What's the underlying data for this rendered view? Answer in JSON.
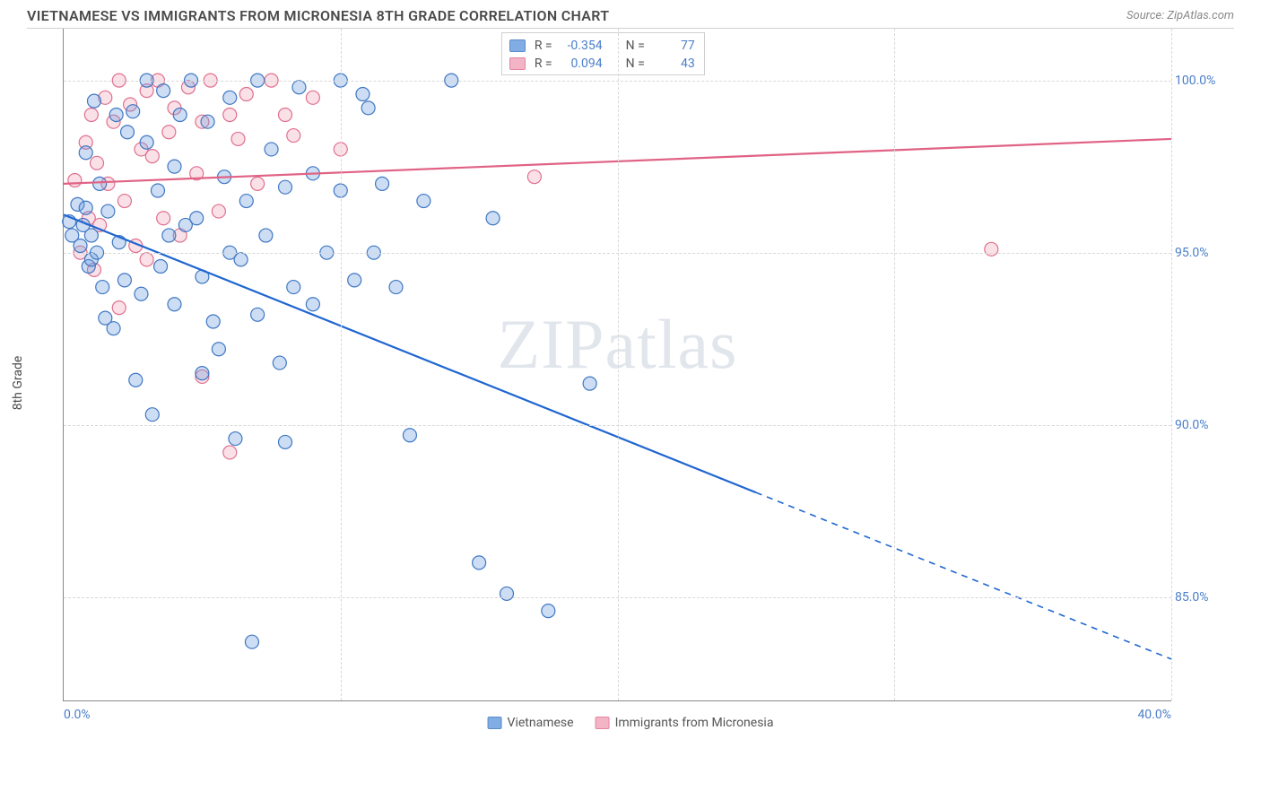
{
  "header": {
    "title": "VIETNAMESE VS IMMIGRANTS FROM MICRONESIA 8TH GRADE CORRELATION CHART",
    "source": "Source: ZipAtlas.com"
  },
  "watermark": "ZIPatlas",
  "chart": {
    "type": "scatter",
    "xlim": [
      0,
      40
    ],
    "ylim": [
      82,
      101.5
    ],
    "x_ticks": [
      0,
      10,
      20,
      30,
      40
    ],
    "x_tick_labels": [
      "0.0%",
      "",
      "",
      "",
      "40.0%"
    ],
    "y_ticks": [
      85,
      90,
      95,
      100
    ],
    "y_tick_labels": [
      "85.0%",
      "90.0%",
      "95.0%",
      "100.0%"
    ],
    "ylabel": "8th Grade",
    "background_color": "#ffffff",
    "grid_color": "#d8d8d8",
    "axis_color": "#888888",
    "marker_radius": 7.5,
    "marker_fill_opacity": 0.35,
    "marker_stroke_width": 1.2,
    "line_width": 2.2,
    "series": [
      {
        "name": "Vietnamese",
        "color": "#6d9fe0",
        "stroke": "#3f77c3",
        "line_color": "#1f66d0",
        "r": -0.354,
        "n": 77,
        "trend": {
          "x1": 0,
          "y1": 96.1,
          "x2": 40,
          "y2": 83.2,
          "solid_until_x": 25
        },
        "points": [
          [
            0.2,
            95.9
          ],
          [
            0.3,
            95.5
          ],
          [
            0.5,
            96.4
          ],
          [
            0.6,
            95.2
          ],
          [
            0.7,
            95.8
          ],
          [
            0.8,
            97.9
          ],
          [
            0.8,
            96.3
          ],
          [
            0.9,
            94.6
          ],
          [
            1.0,
            95.5
          ],
          [
            1.0,
            94.8
          ],
          [
            1.1,
            99.4
          ],
          [
            1.2,
            95.0
          ],
          [
            1.3,
            97.0
          ],
          [
            1.4,
            94.0
          ],
          [
            1.5,
            93.1
          ],
          [
            1.6,
            96.2
          ],
          [
            1.8,
            92.8
          ],
          [
            1.9,
            99.0
          ],
          [
            2.0,
            95.3
          ],
          [
            2.2,
            94.2
          ],
          [
            2.3,
            98.5
          ],
          [
            2.5,
            99.1
          ],
          [
            2.6,
            91.3
          ],
          [
            2.8,
            93.8
          ],
          [
            3.0,
            100.0
          ],
          [
            3.0,
            98.2
          ],
          [
            3.2,
            90.3
          ],
          [
            3.4,
            96.8
          ],
          [
            3.5,
            94.6
          ],
          [
            3.6,
            99.7
          ],
          [
            3.8,
            95.5
          ],
          [
            4.0,
            93.5
          ],
          [
            4.0,
            97.5
          ],
          [
            4.2,
            99.0
          ],
          [
            4.4,
            95.8
          ],
          [
            4.6,
            100.0
          ],
          [
            4.8,
            96.0
          ],
          [
            5.0,
            91.5
          ],
          [
            5.0,
            94.3
          ],
          [
            5.2,
            98.8
          ],
          [
            5.4,
            93.0
          ],
          [
            5.6,
            92.2
          ],
          [
            5.8,
            97.2
          ],
          [
            6.0,
            99.5
          ],
          [
            6.0,
            95.0
          ],
          [
            6.2,
            89.6
          ],
          [
            6.4,
            94.8
          ],
          [
            6.6,
            96.5
          ],
          [
            6.8,
            83.7
          ],
          [
            7.0,
            93.2
          ],
          [
            7.0,
            100.0
          ],
          [
            7.3,
            95.5
          ],
          [
            7.5,
            98.0
          ],
          [
            7.8,
            91.8
          ],
          [
            8.0,
            89.5
          ],
          [
            8.0,
            96.9
          ],
          [
            8.3,
            94.0
          ],
          [
            8.5,
            99.8
          ],
          [
            9.0,
            93.5
          ],
          [
            9.0,
            97.3
          ],
          [
            9.5,
            95.0
          ],
          [
            10.0,
            100.0
          ],
          [
            10.0,
            96.8
          ],
          [
            10.5,
            94.2
          ],
          [
            11.0,
            99.2
          ],
          [
            11.5,
            97.0
          ],
          [
            12.0,
            94.0
          ],
          [
            12.5,
            89.7
          ],
          [
            13.0,
            96.5
          ],
          [
            14.0,
            100.0
          ],
          [
            15.0,
            86.0
          ],
          [
            15.5,
            96.0
          ],
          [
            16.0,
            85.1
          ],
          [
            17.5,
            84.6
          ],
          [
            19.0,
            91.2
          ],
          [
            10.8,
            99.6
          ],
          [
            11.2,
            95.0
          ]
        ]
      },
      {
        "name": "Immigrants from Micronesia",
        "color": "#f2a8bb",
        "stroke": "#e06f8f",
        "line_color": "#e06284",
        "r": 0.094,
        "n": 43,
        "trend": {
          "x1": 0,
          "y1": 97.0,
          "x2": 40,
          "y2": 98.3,
          "solid_until_x": 40
        },
        "points": [
          [
            0.4,
            97.1
          ],
          [
            0.6,
            95.0
          ],
          [
            0.8,
            98.2
          ],
          [
            0.9,
            96.0
          ],
          [
            1.0,
            99.0
          ],
          [
            1.1,
            94.5
          ],
          [
            1.2,
            97.6
          ],
          [
            1.3,
            95.8
          ],
          [
            1.5,
            99.5
          ],
          [
            1.6,
            97.0
          ],
          [
            1.8,
            98.8
          ],
          [
            2.0,
            93.4
          ],
          [
            2.0,
            100.0
          ],
          [
            2.2,
            96.5
          ],
          [
            2.4,
            99.3
          ],
          [
            2.6,
            95.2
          ],
          [
            2.8,
            98.0
          ],
          [
            3.0,
            99.7
          ],
          [
            3.0,
            94.8
          ],
          [
            3.2,
            97.8
          ],
          [
            3.4,
            100.0
          ],
          [
            3.6,
            96.0
          ],
          [
            3.8,
            98.5
          ],
          [
            4.0,
            99.2
          ],
          [
            4.2,
            95.5
          ],
          [
            4.5,
            99.8
          ],
          [
            4.8,
            97.3
          ],
          [
            5.0,
            91.4
          ],
          [
            5.0,
            98.8
          ],
          [
            5.3,
            100.0
          ],
          [
            5.6,
            96.2
          ],
          [
            6.0,
            99.0
          ],
          [
            6.0,
            89.2
          ],
          [
            6.3,
            98.3
          ],
          [
            6.6,
            99.6
          ],
          [
            7.0,
            97.0
          ],
          [
            7.5,
            100.0
          ],
          [
            8.0,
            99.0
          ],
          [
            8.3,
            98.4
          ],
          [
            9.0,
            99.5
          ],
          [
            10.0,
            98.0
          ],
          [
            17.0,
            97.2
          ],
          [
            33.5,
            95.1
          ]
        ]
      }
    ]
  },
  "legend_stats_labels": {
    "r": "R =",
    "n": "N ="
  },
  "bottom_legend": [
    "Vietnamese",
    "Immigrants from Micronesia"
  ]
}
